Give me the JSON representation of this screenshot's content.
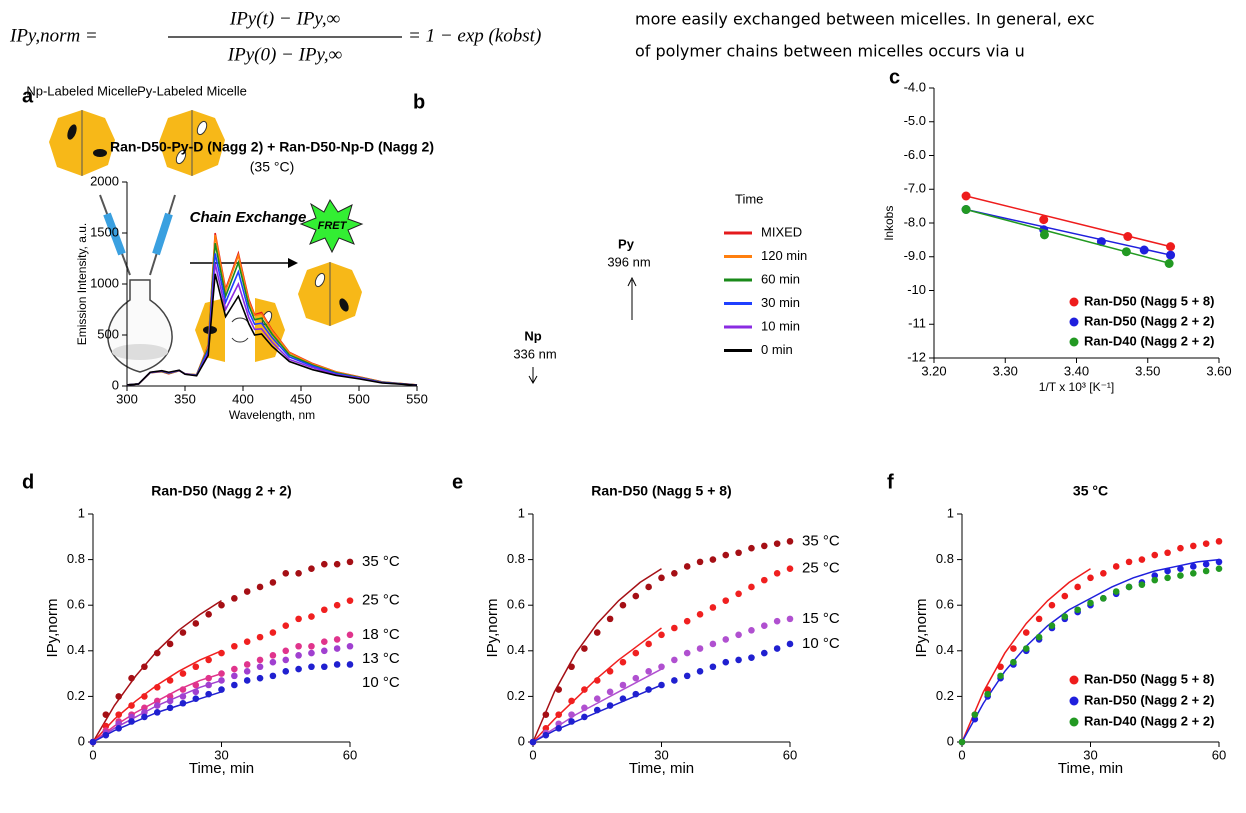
{
  "document": {
    "equation": {
      "lhs": "IPy,norm =",
      "numerator": "IPy(t) − IPy,∞",
      "denominator": "IPy(0) − IPy,∞",
      "rhs": "= 1 − exp (kobst)"
    },
    "text_lines": [
      "more easily exchanged between micelles. In general, exc",
      "of  polymer  chains  between  micelles  occurs  via  u"
    ],
    "scheme": {
      "panel_label": "a",
      "np_label": "Np-Labeled Micelle",
      "py_label": "Py-Labeled Micelle",
      "arrow_label": "Chain Exchange",
      "fret": "FRET"
    }
  },
  "chart_data": [
    {
      "type": "line",
      "panel_label": "b",
      "title": "Ran-D50-Py-D (Nagg 2)  + Ran-D50-Np-D (Nagg 2)",
      "subtitle": "(35 °C)",
      "xlabel": "Wavelength, nm",
      "ylabel": "Emission Intensity, a.u.",
      "legend": "right",
      "legend_title": "Time",
      "annotations": [
        "Py",
        "396 nm",
        "Np",
        "336 nm"
      ],
      "xlim": [
        300,
        550
      ],
      "xticks": [
        300,
        350,
        400,
        450,
        500,
        550
      ],
      "ylim": [
        0,
        2000
      ],
      "yticks": [
        0,
        500,
        1000,
        1500,
        2000
      ],
      "x": [
        300,
        310,
        320,
        330,
        336,
        345,
        350,
        360,
        370,
        376,
        385,
        396,
        405,
        410,
        416,
        425,
        440,
        460,
        480,
        500,
        520,
        550
      ],
      "series": [
        {
          "name": "MIXED",
          "color": "#e41a1c",
          "values": [
            10,
            20,
            130,
            140,
            120,
            150,
            120,
            110,
            400,
            1500,
            950,
            1300,
            850,
            700,
            720,
            550,
            330,
            220,
            140,
            90,
            40,
            10
          ]
        },
        {
          "name": "120 min",
          "color": "#ff7f0e",
          "values": [
            10,
            20,
            130,
            142,
            122,
            150,
            120,
            110,
            390,
            1480,
            930,
            1280,
            830,
            690,
            705,
            540,
            325,
            215,
            138,
            88,
            39,
            10
          ]
        },
        {
          "name": "60 min",
          "color": "#1a8a1a",
          "values": [
            10,
            20,
            131,
            144,
            125,
            151,
            119,
            108,
            370,
            1400,
            880,
            1210,
            790,
            650,
            665,
            510,
            305,
            205,
            130,
            84,
            37,
            9
          ]
        },
        {
          "name": "30 min",
          "color": "#1f3fff",
          "values": [
            10,
            20,
            132,
            146,
            128,
            152,
            118,
            105,
            350,
            1300,
            820,
            1120,
            730,
            605,
            615,
            475,
            285,
            195,
            122,
            80,
            35,
            9
          ]
        },
        {
          "name": "10 min",
          "color": "#8a2be2",
          "values": [
            10,
            20,
            133,
            148,
            131,
            153,
            117,
            103,
            320,
            1200,
            750,
            1000,
            670,
            555,
            560,
            430,
            260,
            180,
            112,
            75,
            32,
            8
          ]
        },
        {
          "name": "0 min",
          "color": "#000000",
          "values": [
            10,
            20,
            135,
            150,
            135,
            155,
            115,
            100,
            300,
            1100,
            680,
            880,
            610,
            500,
            510,
            390,
            240,
            160,
            105,
            70,
            30,
            8
          ]
        }
      ]
    },
    {
      "type": "scatter",
      "panel_label": "c",
      "xlabel": "1/T x 10³ [K⁻¹]",
      "ylabel": "lnkobs",
      "legend": "lower right",
      "xlim": [
        3.2,
        3.6
      ],
      "xticks": [
        {
          "value": 3.2,
          "label": "3.20"
        },
        {
          "value": 3.3,
          "label": "3.30"
        },
        {
          "value": 3.4,
          "label": "3.40"
        },
        {
          "value": 3.5,
          "label": "3.50"
        },
        {
          "value": 3.6,
          "label": "3.60"
        }
      ],
      "ylim": [
        -12,
        -4
      ],
      "yticks": [
        {
          "value": -4,
          "label": "-4.0"
        },
        {
          "value": -5,
          "label": "-5.0"
        },
        {
          "value": -6,
          "label": "-6.0"
        },
        {
          "value": -7,
          "label": "-7.0"
        },
        {
          "value": -8,
          "label": "-8.0"
        },
        {
          "value": -9,
          "label": "-9.0"
        },
        {
          "value": -10,
          "label": "-10"
        },
        {
          "value": -11,
          "label": "-11"
        },
        {
          "value": -12,
          "label": "-12"
        }
      ],
      "series": [
        {
          "name": "Ran-D50 (Nagg 5 + 8)",
          "color": "#ee1c1c",
          "x": [
            3.245,
            3.354,
            3.472,
            3.532
          ],
          "values": [
            -7.2,
            -7.9,
            -8.4,
            -8.7
          ],
          "fit": {
            "x": [
              3.245,
              3.532
            ],
            "values": [
              -7.2,
              -8.7
            ]
          }
        },
        {
          "name": "Ran-D50 (Nagg 2 + 2)",
          "color": "#1f1fdd",
          "x": [
            3.245,
            3.354,
            3.435,
            3.495,
            3.532
          ],
          "values": [
            -7.6,
            -8.2,
            -8.55,
            -8.8,
            -8.95
          ],
          "fit": {
            "x": [
              3.245,
              3.532
            ],
            "values": [
              -7.6,
              -8.95
            ]
          }
        },
        {
          "name": "Ran-D40 (Nagg 2 + 2)",
          "color": "#229922",
          "x": [
            3.245,
            3.355,
            3.47,
            3.53
          ],
          "values": [
            -7.6,
            -8.35,
            -8.85,
            -9.2
          ],
          "fit": {
            "x": [
              3.245,
              3.532
            ],
            "values": [
              -7.6,
              -9.2
            ]
          }
        }
      ]
    },
    {
      "type": "scatter",
      "panel_label": "d",
      "title": "Ran-D50 (Nagg 2 + 2)",
      "xlabel": "Time, min",
      "ylabel": "IPy,norm",
      "legend": "end",
      "xlim": [
        0,
        60
      ],
      "xticks": [
        0,
        30,
        60
      ],
      "ylim": [
        0,
        1
      ],
      "yticks": [
        0,
        0.2,
        0.4,
        0.6,
        0.8,
        1
      ],
      "x": [
        0,
        3,
        6,
        9,
        12,
        15,
        18,
        21,
        24,
        27,
        30,
        33,
        36,
        39,
        42,
        45,
        48,
        51,
        54,
        57,
        60
      ],
      "series": [
        {
          "name": "35 °C",
          "color": "#a50f15",
          "values": [
            0,
            0.12,
            0.2,
            0.28,
            0.33,
            0.39,
            0.43,
            0.48,
            0.52,
            0.56,
            0.6,
            0.63,
            0.66,
            0.68,
            0.7,
            0.74,
            0.74,
            0.76,
            0.78,
            0.78,
            0.79
          ],
          "fit": {
            "x": [
              0,
              5,
              10,
              15,
              20,
              25,
              30
            ],
            "values": [
              0,
              0.16,
              0.29,
              0.4,
              0.49,
              0.56,
              0.62
            ]
          }
        },
        {
          "name": "25 °C",
          "color": "#f02020",
          "values": [
            0,
            0.07,
            0.12,
            0.16,
            0.2,
            0.24,
            0.27,
            0.3,
            0.33,
            0.36,
            0.39,
            0.42,
            0.44,
            0.46,
            0.48,
            0.51,
            0.54,
            0.55,
            0.58,
            0.6,
            0.62
          ],
          "fit": {
            "x": [
              0,
              5,
              10,
              15,
              20,
              25,
              30
            ],
            "values": [
              0,
              0.1,
              0.18,
              0.25,
              0.31,
              0.36,
              0.4
            ]
          }
        },
        {
          "name": "18 °C",
          "color": "#e0348c",
          "values": [
            0,
            0.05,
            0.09,
            0.12,
            0.15,
            0.18,
            0.2,
            0.23,
            0.25,
            0.28,
            0.3,
            0.32,
            0.34,
            0.36,
            0.38,
            0.4,
            0.42,
            0.42,
            0.44,
            0.45,
            0.47
          ],
          "fit": {
            "x": [
              0,
              5,
              10,
              15,
              20,
              25,
              30
            ],
            "values": [
              0,
              0.07,
              0.13,
              0.18,
              0.23,
              0.27,
              0.3
            ]
          }
        },
        {
          "name": "13 °C",
          "color": "#a040d0",
          "values": [
            0,
            0.04,
            0.08,
            0.11,
            0.13,
            0.16,
            0.18,
            0.2,
            0.22,
            0.25,
            0.27,
            0.29,
            0.31,
            0.33,
            0.35,
            0.36,
            0.38,
            0.39,
            0.4,
            0.41,
            0.42
          ],
          "fit": {
            "x": [
              0,
              5,
              10,
              15,
              20,
              25,
              30
            ],
            "values": [
              0,
              0.06,
              0.11,
              0.16,
              0.2,
              0.24,
              0.27
            ]
          }
        },
        {
          "name": "10 °C",
          "color": "#2020d0",
          "values": [
            0,
            0.03,
            0.06,
            0.09,
            0.11,
            0.13,
            0.15,
            0.17,
            0.19,
            0.21,
            0.23,
            0.25,
            0.27,
            0.28,
            0.29,
            0.31,
            0.32,
            0.33,
            0.33,
            0.34,
            0.34
          ],
          "fit": {
            "x": [
              0,
              5,
              10,
              15,
              20,
              25,
              30
            ],
            "values": [
              0,
              0.05,
              0.09,
              0.13,
              0.16,
              0.19,
              0.22
            ]
          }
        }
      ]
    },
    {
      "type": "scatter",
      "panel_label": "e",
      "title": "Ran-D50 (Nagg 5 + 8)",
      "xlabel": "Time, min",
      "ylabel": "IPy,norm",
      "legend": "end",
      "xlim": [
        0,
        60
      ],
      "xticks": [
        0,
        30,
        60
      ],
      "ylim": [
        0,
        1
      ],
      "yticks": [
        0,
        0.2,
        0.4,
        0.6,
        0.8,
        1
      ],
      "x": [
        0,
        3,
        6,
        9,
        12,
        15,
        18,
        21,
        24,
        27,
        30,
        33,
        36,
        39,
        42,
        45,
        48,
        51,
        54,
        57,
        60
      ],
      "series": [
        {
          "name": "35 °C",
          "color": "#a50f15",
          "values": [
            0,
            0.12,
            0.23,
            0.33,
            0.41,
            0.48,
            0.54,
            0.6,
            0.64,
            0.68,
            0.72,
            0.74,
            0.77,
            0.79,
            0.8,
            0.82,
            0.83,
            0.85,
            0.86,
            0.87,
            0.88
          ],
          "fit": {
            "x": [
              0,
              5,
              10,
              15,
              20,
              25,
              30
            ],
            "values": [
              0,
              0.22,
              0.39,
              0.52,
              0.62,
              0.7,
              0.76
            ]
          }
        },
        {
          "name": "25 °C",
          "color": "#f02020",
          "values": [
            0,
            0.06,
            0.12,
            0.18,
            0.23,
            0.27,
            0.31,
            0.35,
            0.39,
            0.43,
            0.47,
            0.5,
            0.53,
            0.56,
            0.59,
            0.62,
            0.65,
            0.68,
            0.71,
            0.74,
            0.76
          ],
          "fit": {
            "x": [
              0,
              5,
              10,
              15,
              20,
              25,
              30
            ],
            "values": [
              0,
              0.1,
              0.19,
              0.28,
              0.36,
              0.43,
              0.5
            ]
          }
        },
        {
          "name": "15 °C",
          "color": "#b050d0",
          "values": [
            0,
            0.04,
            0.08,
            0.12,
            0.15,
            0.19,
            0.22,
            0.25,
            0.28,
            0.31,
            0.33,
            0.36,
            0.39,
            0.41,
            0.43,
            0.45,
            0.47,
            0.49,
            0.51,
            0.53,
            0.54
          ],
          "fit": {
            "x": [
              0,
              5,
              10,
              15,
              20,
              25,
              30
            ],
            "values": [
              0,
              0.06,
              0.12,
              0.17,
              0.22,
              0.27,
              0.32
            ]
          }
        },
        {
          "name": "10 °C",
          "color": "#2020d0",
          "values": [
            0,
            0.03,
            0.06,
            0.09,
            0.11,
            0.14,
            0.16,
            0.19,
            0.21,
            0.23,
            0.25,
            0.27,
            0.29,
            0.31,
            0.33,
            0.35,
            0.36,
            0.37,
            0.39,
            0.41,
            0.43
          ],
          "fit": {
            "x": [
              0,
              5,
              10,
              15,
              20,
              25,
              30
            ],
            "values": [
              0,
              0.05,
              0.09,
              0.13,
              0.17,
              0.21,
              0.25
            ]
          }
        }
      ]
    },
    {
      "type": "scatter",
      "panel_label": "f",
      "title": "35 °C",
      "xlabel": "Time, min",
      "ylabel": "IPy,norm",
      "legend": "lower right",
      "xlim": [
        0,
        60
      ],
      "xticks": [
        0,
        30,
        60
      ],
      "ylim": [
        0,
        1
      ],
      "yticks": [
        0,
        0.2,
        0.4,
        0.6,
        0.8,
        1
      ],
      "x": [
        0,
        3,
        6,
        9,
        12,
        15,
        18,
        21,
        24,
        27,
        30,
        33,
        36,
        39,
        42,
        45,
        48,
        51,
        54,
        57,
        60
      ],
      "series": [
        {
          "name": "Ran-D50 (Nagg 5 + 8)",
          "color": "#ee1c1c",
          "values": [
            0,
            0.12,
            0.23,
            0.33,
            0.41,
            0.48,
            0.54,
            0.6,
            0.64,
            0.68,
            0.72,
            0.74,
            0.77,
            0.79,
            0.8,
            0.82,
            0.83,
            0.85,
            0.86,
            0.87,
            0.88
          ],
          "fit": {
            "x": [
              0,
              5,
              10,
              15,
              20,
              25,
              30
            ],
            "values": [
              0,
              0.22,
              0.39,
              0.52,
              0.62,
              0.7,
              0.76
            ]
          }
        },
        {
          "name": "Ran-D50 (Nagg 2 + 2)",
          "color": "#1f1fdd",
          "values": [
            0,
            0.1,
            0.2,
            0.28,
            0.34,
            0.4,
            0.45,
            0.5,
            0.54,
            0.57,
            0.6,
            0.63,
            0.65,
            0.68,
            0.7,
            0.73,
            0.75,
            0.76,
            0.77,
            0.78,
            0.79
          ],
          "fit": {
            "x": [
              0,
              5,
              10,
              15,
              20,
              25,
              30,
              35,
              40,
              45,
              50,
              55,
              60
            ],
            "values": [
              0,
              0.17,
              0.31,
              0.42,
              0.51,
              0.58,
              0.63,
              0.68,
              0.72,
              0.75,
              0.77,
              0.79,
              0.8
            ]
          }
        },
        {
          "name": "Ran-D40 (Nagg 2 + 2)",
          "color": "#229922",
          "values": [
            0,
            0.12,
            0.21,
            0.29,
            0.35,
            0.41,
            0.46,
            0.51,
            0.55,
            0.58,
            0.61,
            0.63,
            0.66,
            0.68,
            0.69,
            0.71,
            0.72,
            0.73,
            0.74,
            0.75,
            0.76
          ]
        }
      ]
    }
  ]
}
